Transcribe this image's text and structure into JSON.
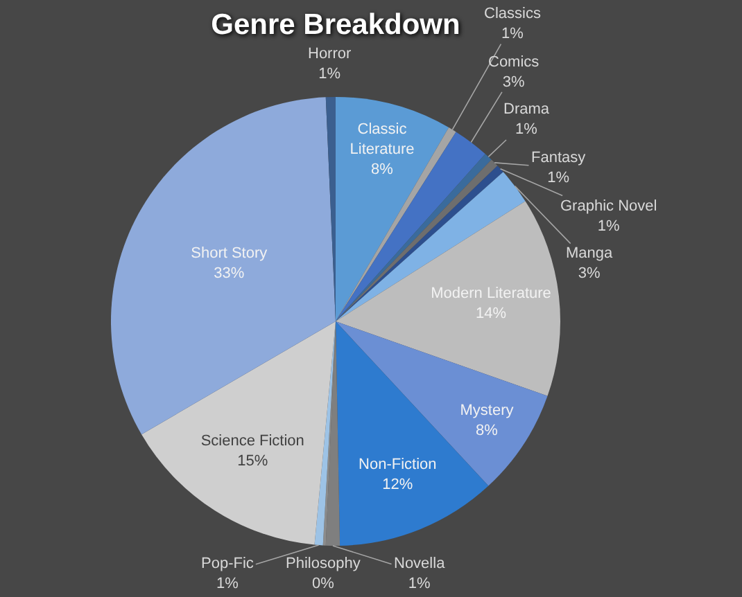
{
  "chart_data": {
    "type": "pie",
    "title": "Genre Breakdown",
    "categories": [
      "Classic Literature",
      "Classics",
      "Comics",
      "Drama",
      "Fantasy",
      "Graphic Novel",
      "Manga",
      "Modern Literature",
      "Mystery",
      "Non-Fiction",
      "Novella",
      "Philosophy",
      "Pop-Fic",
      "Science Fiction",
      "Short Story",
      "Horror"
    ],
    "values": [
      8.4,
      0.6,
      2.6,
      0.6,
      0.6,
      0.6,
      2.6,
      14.4,
      7.7,
      11.6,
      1.0,
      0.2,
      0.6,
      15.1,
      32.7,
      0.7
    ],
    "value_labels": [
      "8%",
      "1%",
      "3%",
      "1%",
      "1%",
      "1%",
      "3%",
      "14%",
      "8%",
      "12%",
      "1%",
      "0%",
      "1%",
      "15%",
      "33%",
      "1%"
    ],
    "colors": [
      "#5b9bd5",
      "#a5a5a5",
      "#4472c4",
      "#3a6b9c",
      "#6e6e6e",
      "#2d4f8e",
      "#7fb2e5",
      "#bdbdbd",
      "#6b8fd4",
      "#2e7bcf",
      "#7f7f7f",
      "#8c8c8c",
      "#9dc3e6",
      "#cfcfcf",
      "#8eaadb",
      "#3b5f8f"
    ],
    "legend": false
  }
}
